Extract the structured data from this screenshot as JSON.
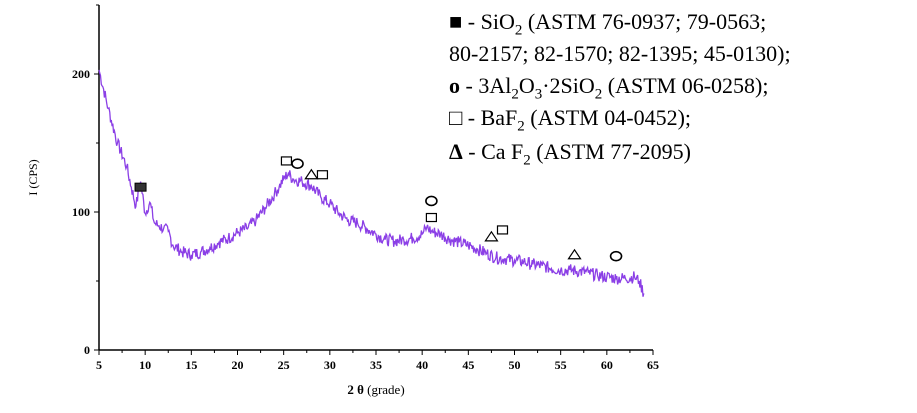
{
  "chart_data": {
    "type": "line",
    "ylabel": "I (CPS)",
    "xlabel_symbol": "2 θ",
    "xlabel_unit": "(grade)",
    "xlim": [
      5,
      65
    ],
    "ylim": [
      0,
      250
    ],
    "x_ticks": [
      "5",
      "10",
      "15",
      "20",
      "25",
      "30",
      "35",
      "40",
      "45",
      "50",
      "55",
      "60",
      "65"
    ],
    "y_ticks": [
      "0",
      "100",
      "200"
    ],
    "line_color": "#8b3fe6",
    "series": [
      {
        "x": [
          5,
          6,
          7,
          8,
          8.5,
          9,
          9.5,
          10,
          10.5,
          11,
          11.5,
          12,
          12.5,
          13,
          14,
          15,
          16,
          17,
          18,
          19,
          20,
          21,
          22,
          23,
          24,
          24.5,
          25,
          25.5,
          26,
          27,
          28,
          29,
          30,
          31,
          32,
          33,
          34,
          35,
          36,
          37,
          38,
          39,
          40,
          40.5,
          41,
          42,
          43,
          44,
          45,
          46,
          47,
          48,
          49,
          50,
          51,
          52,
          53,
          54,
          55,
          56,
          57,
          58,
          59,
          60,
          61,
          62,
          63,
          63.5,
          64
        ],
        "y": [
          203,
          175,
          150,
          133,
          118,
          104,
          122,
          99,
          107,
          92,
          90,
          88,
          86,
          76,
          71,
          69,
          71,
          74,
          78,
          81,
          85,
          88,
          94,
          103,
          113,
          118,
          124,
          128,
          124,
          122,
          119,
          111,
          106,
          99,
          94,
          92,
          88,
          84,
          80,
          79,
          80,
          81,
          84,
          89,
          86,
          84,
          80,
          78,
          76,
          73,
          70,
          67,
          66,
          65,
          64,
          62,
          61,
          59,
          58,
          58,
          57,
          56,
          54,
          53,
          52,
          52,
          53,
          50,
          41
        ]
      }
    ],
    "markers": [
      {
        "type": "filled-square",
        "x": 9.5,
        "y": 118
      },
      {
        "type": "square",
        "x": 25.3,
        "y": 137
      },
      {
        "type": "circle",
        "x": 26.5,
        "y": 135
      },
      {
        "type": "triangle",
        "x": 28,
        "y": 127
      },
      {
        "type": "square",
        "x": 29.2,
        "y": 127
      },
      {
        "type": "circle",
        "x": 41,
        "y": 108
      },
      {
        "type": "square",
        "x": 41,
        "y": 96
      },
      {
        "type": "triangle",
        "x": 47.5,
        "y": 82
      },
      {
        "type": "square",
        "x": 48.7,
        "y": 87
      },
      {
        "type": "triangle",
        "x": 56.5,
        "y": 69
      },
      {
        "type": "circle",
        "x": 61,
        "y": 68
      }
    ]
  },
  "legend": {
    "line1": {
      "symbol": "■",
      "pre": " - SiO",
      "sub": "2",
      "post": " (ASTM 76-0937; 79-0563;"
    },
    "line2": {
      "text": "80-2157; 82-1570; 82-1395; 45-0130);"
    },
    "line3": {
      "symbol": "o",
      "pre": " - 3Al",
      "sub1": "2",
      "mid1": "O",
      "sub2": "3",
      "mid2": "·2SiO",
      "sub3": "2",
      "post": " (ASTM 06-0258);"
    },
    "line4": {
      "symbol": "□",
      "pre": " - BaF",
      "sub": "2",
      "post": " (ASTM 04-0452);"
    },
    "line5": {
      "symbol": "Δ",
      "pre": " - Ca F",
      "sub": "2",
      "post": " (ASTM 77-2095)"
    }
  }
}
